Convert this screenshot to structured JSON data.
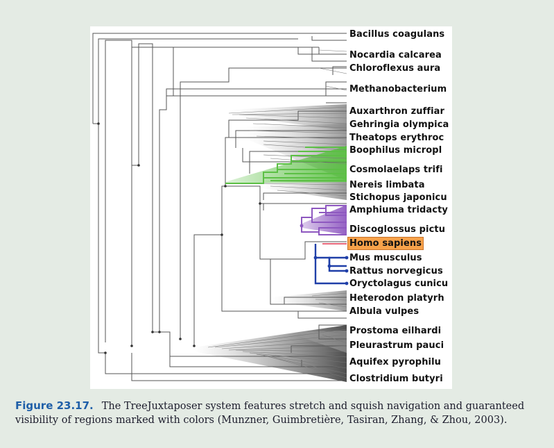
{
  "figure": {
    "leaves": [
      {
        "label": "Bacillus coagulans",
        "highlight": false
      },
      {
        "label": "Nocardia calcarea",
        "highlight": false
      },
      {
        "label": "Chloroflexus aura",
        "highlight": false
      },
      {
        "label": "Methanobacterium",
        "highlight": false
      },
      {
        "label": "Auxarthron zuffiar",
        "highlight": false
      },
      {
        "label": "Gehringia olympica",
        "highlight": false
      },
      {
        "label": "Theatops erythroc",
        "highlight": false
      },
      {
        "label": "Boophilus micropl",
        "highlight": false
      },
      {
        "label": "Cosmolaelaps trifi",
        "highlight": false
      },
      {
        "label": "Nereis limbata",
        "highlight": false
      },
      {
        "label": "Stichopus japonicu",
        "highlight": false
      },
      {
        "label": "Amphiuma tridacty",
        "highlight": false
      },
      {
        "label": "Discoglossus pictu",
        "highlight": false
      },
      {
        "label": "Homo sapiens",
        "highlight": true
      },
      {
        "label": "Mus musculus",
        "highlight": false
      },
      {
        "label": "Rattus norvegicus",
        "highlight": false
      },
      {
        "label": "Oryctolagus cunicu",
        "highlight": false
      },
      {
        "label": "Heterodon platyrh",
        "highlight": false
      },
      {
        "label": "Albula vulpes",
        "highlight": false
      },
      {
        "label": "Prostoma eilhardi",
        "highlight": false
      },
      {
        "label": "Pleurastrum pauci",
        "highlight": false
      },
      {
        "label": "Aquifex pyrophilu",
        "highlight": false
      },
      {
        "label": "Clostridium butyri",
        "highlight": false
      }
    ],
    "colors": {
      "green": "#5cc045",
      "purple": "#8e58c0",
      "blue": "#1f3fa8",
      "pink": "#e8677a",
      "highlight": "#f7a24a",
      "caption_label": "#1f5fa8"
    }
  },
  "caption": {
    "label": "Figure 23.17.",
    "text": "The TreeJuxtaposer system features stretch and squish navigation and guaranteed visibility of regions marked with colors (Munzner, Guimbretière, Tasiran, Zhang, & Zhou, 2003)."
  }
}
